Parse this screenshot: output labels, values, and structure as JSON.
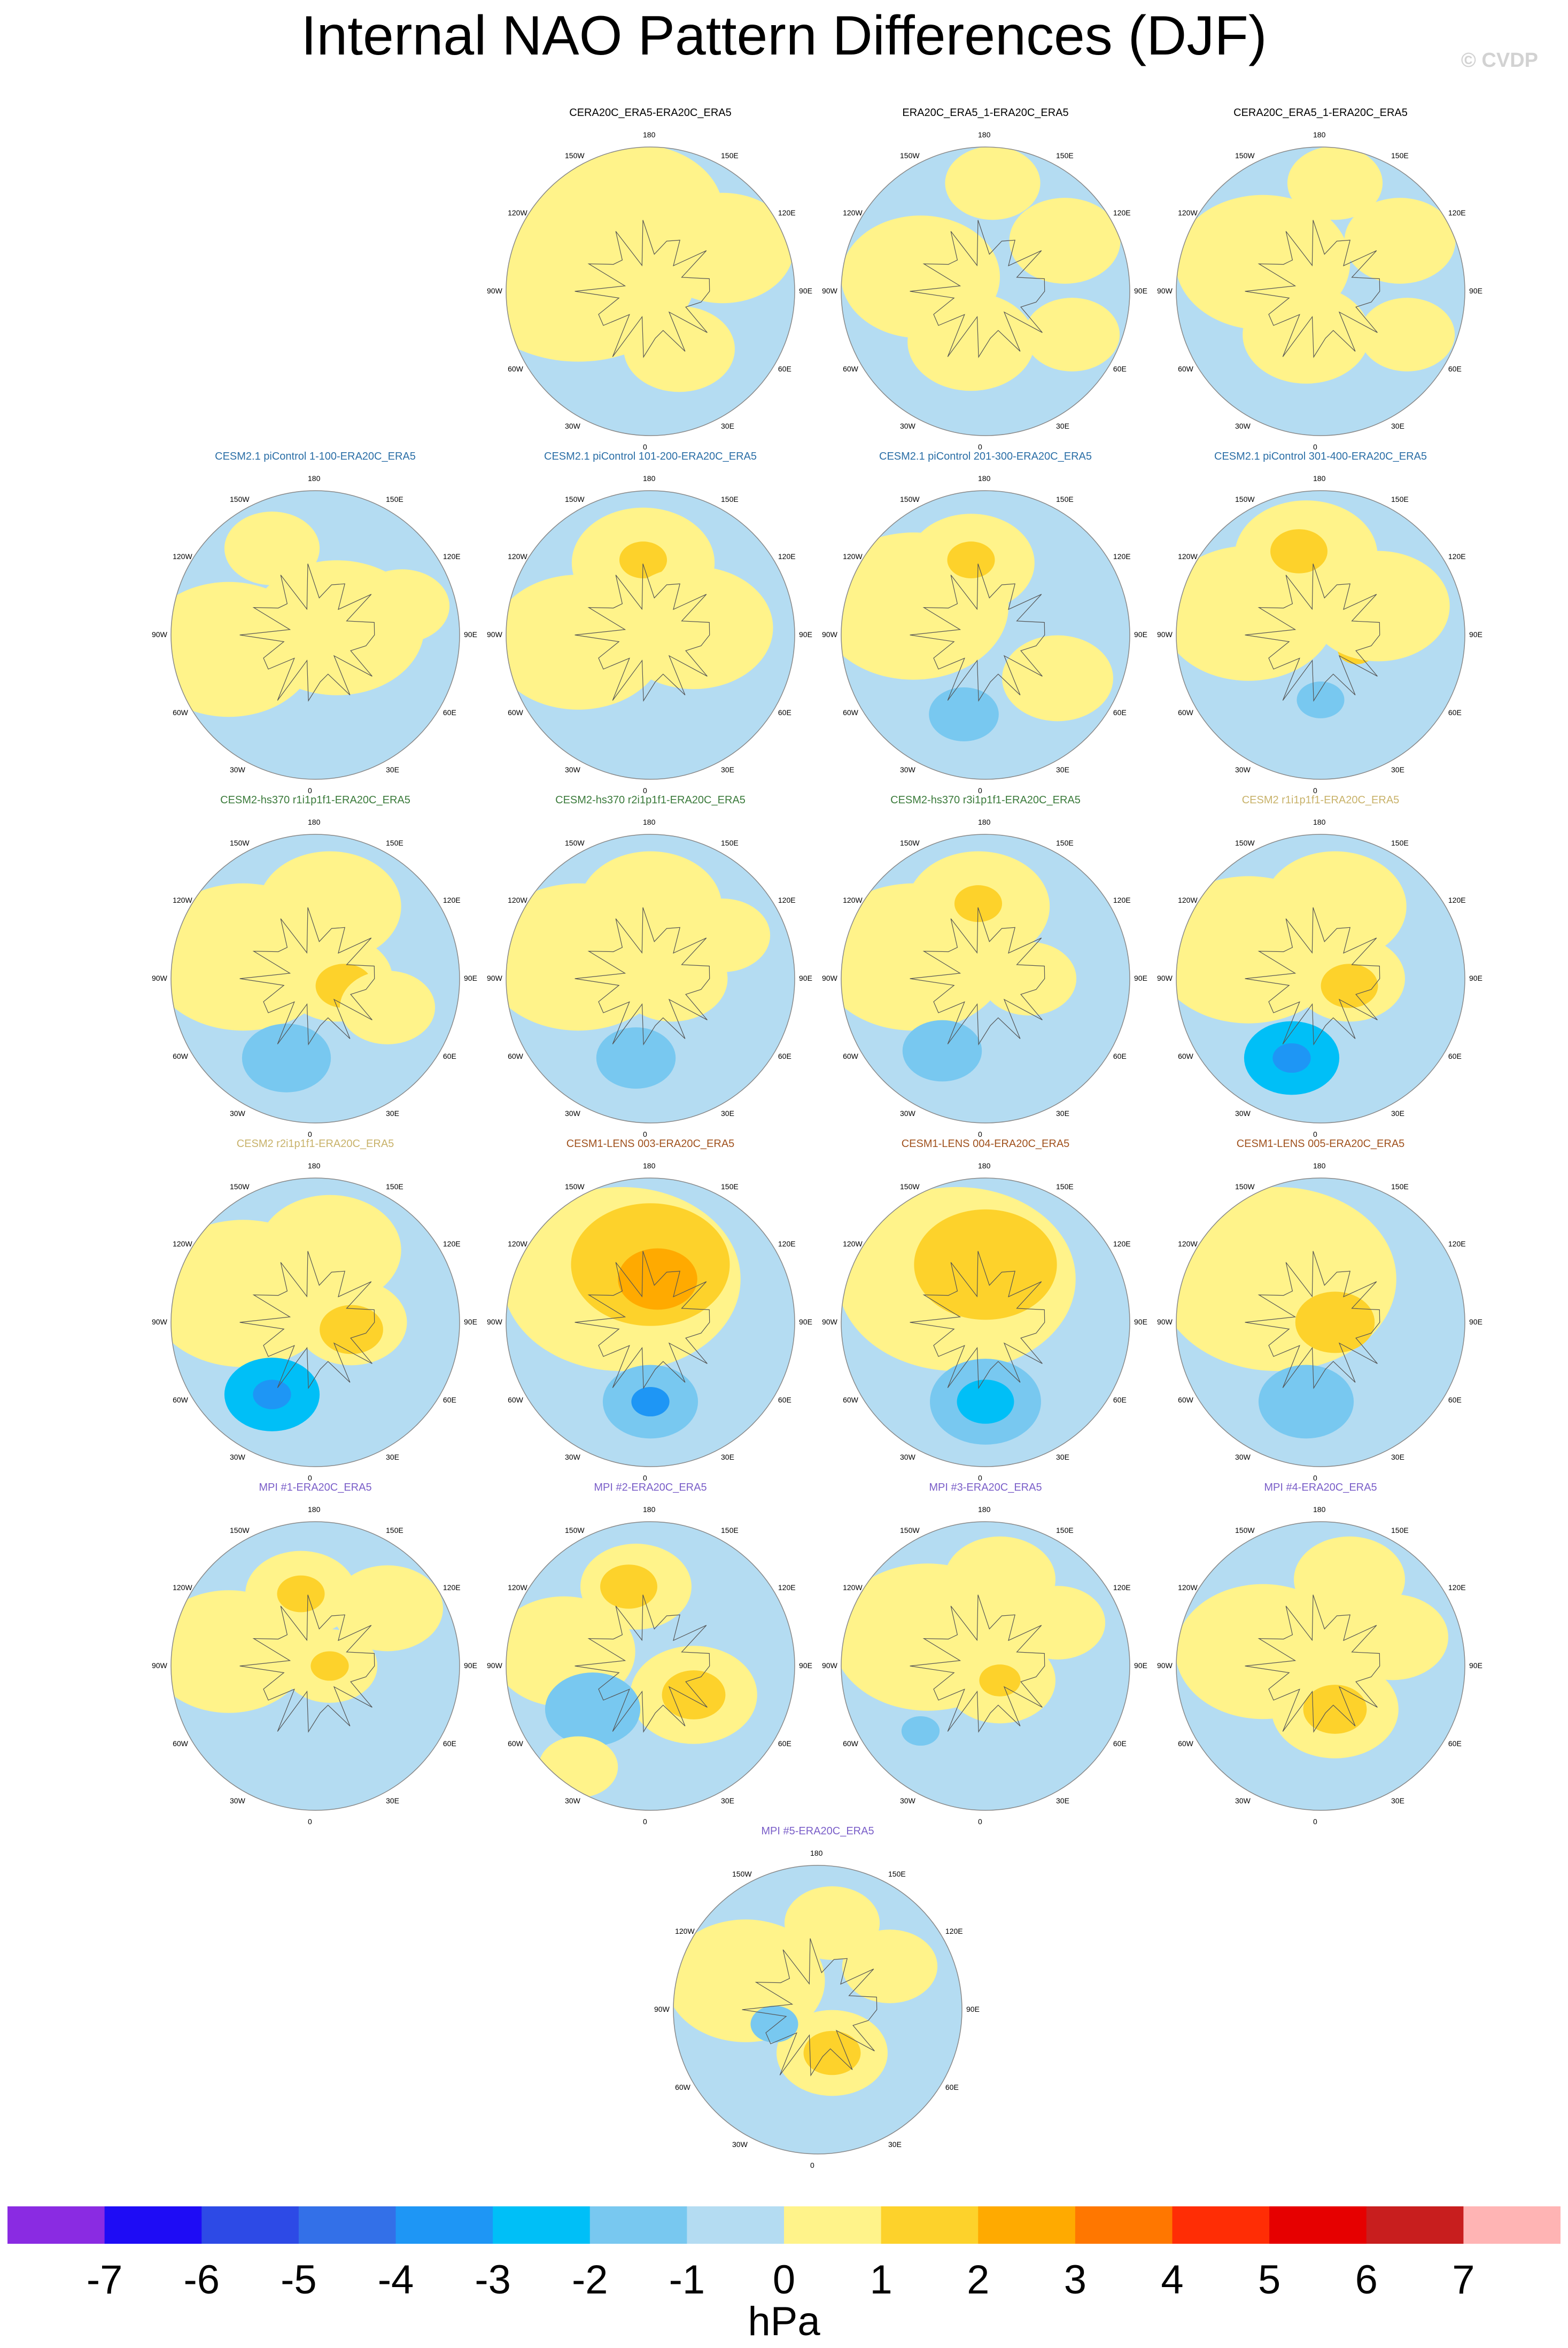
{
  "title": "Internal NAO Pattern Differences (DJF)",
  "credit": "© CVDP",
  "colors": {
    "ocean_zero": "#b4dcf2",
    "coast": "#555555",
    "rim": "#888888"
  },
  "lon_labels": [
    "180",
    "150E",
    "120E",
    "90E",
    "60E",
    "30E",
    "0",
    "30W",
    "60W",
    "90W",
    "120W",
    "150W"
  ],
  "chart_data": [
    {
      "type": "heatmap",
      "title": "CERA20C_ERA5-ERA20C_ERA5",
      "title_color": "#000000",
      "row": 0,
      "col": 1,
      "blobs": [
        [
          -0.5,
          0.15,
          0.75,
          0.2,
          1
        ],
        [
          -0.1,
          0.55,
          0.55,
          0.1,
          1
        ],
        [
          0.5,
          0.3,
          0.45,
          -0.1,
          1
        ],
        [
          0.2,
          -0.4,
          0.35,
          0.1,
          1
        ]
      ]
    },
    {
      "type": "heatmap",
      "title": "ERA20C_ERA5_1-ERA20C_ERA5",
      "title_color": "#000000",
      "row": 0,
      "col": 2,
      "blobs": [
        [
          -0.45,
          0.1,
          0.5,
          0.2,
          1
        ],
        [
          0.55,
          0.35,
          0.35,
          0.1,
          1
        ],
        [
          0.6,
          -0.3,
          0.3,
          0.1,
          1
        ],
        [
          -0.1,
          -0.35,
          0.4,
          0.1,
          1
        ],
        [
          0.05,
          0.75,
          0.3,
          0.2,
          1
        ]
      ]
    },
    {
      "type": "heatmap",
      "title": "CERA20C_ERA5_1-ERA20C_ERA5",
      "title_color": "#000000",
      "row": 0,
      "col": 3,
      "blobs": [
        [
          -0.4,
          0.2,
          0.55,
          0.2,
          1
        ],
        [
          0.55,
          0.35,
          0.35,
          0.1,
          1
        ],
        [
          0.6,
          -0.3,
          0.3,
          0.1,
          1
        ],
        [
          -0.1,
          -0.3,
          0.4,
          0.1,
          1
        ],
        [
          0.1,
          0.75,
          0.3,
          0.2,
          1
        ]
      ]
    },
    {
      "type": "heatmap",
      "title": "CESM2.1 piControl 1-100-ERA20C_ERA5",
      "title_color": "#2a6ea6",
      "row": 1,
      "col": 0,
      "blobs": [
        [
          -0.6,
          -0.1,
          0.55,
          0.1,
          1
        ],
        [
          0.15,
          0.05,
          0.55,
          0.2,
          1
        ],
        [
          -0.3,
          0.6,
          0.3,
          0.4,
          1
        ],
        [
          0.6,
          0.2,
          0.3,
          0.2,
          1
        ]
      ]
    },
    {
      "type": "heatmap",
      "title": "CESM2.1 piControl 101-200-ERA20C_ERA5",
      "title_color": "#2a6ea6",
      "row": 1,
      "col": 1,
      "blobs": [
        [
          -0.5,
          -0.05,
          0.55,
          0.1,
          1
        ],
        [
          -0.05,
          0.5,
          0.45,
          0.1,
          1
        ],
        [
          -0.05,
          0.52,
          0.15,
          0.5,
          2
        ],
        [
          0.3,
          0.05,
          0.5,
          0.2,
          1
        ]
      ]
    },
    {
      "type": "heatmap",
      "title": "CESM2.1 piControl 201-300-ERA20C_ERA5",
      "title_color": "#2a6ea6",
      "row": 1,
      "col": 2,
      "blobs": [
        [
          -0.5,
          0.2,
          0.6,
          0.1,
          1
        ],
        [
          -0.1,
          0.5,
          0.4,
          0.1,
          1
        ],
        [
          -0.1,
          0.52,
          0.15,
          0.4,
          2
        ],
        [
          -0.15,
          -0.55,
          0.22,
          -0.2,
          -1
        ],
        [
          0.5,
          -0.3,
          0.35,
          0.2,
          1
        ]
      ]
    },
    {
      "type": "heatmap",
      "title": "CESM2.1 piControl 301-400-ERA20C_ERA5",
      "title_color": "#2a6ea6",
      "row": 1,
      "col": 3,
      "blobs": [
        [
          -0.5,
          0.15,
          0.55,
          0.1,
          1
        ],
        [
          -0.1,
          0.55,
          0.45,
          0.1,
          1
        ],
        [
          -0.15,
          0.58,
          0.18,
          0.4,
          2
        ],
        [
          0.0,
          -0.45,
          0.15,
          -0.2,
          -1
        ],
        [
          0.25,
          -0.1,
          0.12,
          0.5,
          2
        ],
        [
          0.4,
          0.2,
          0.45,
          0.2,
          1
        ]
      ]
    },
    {
      "type": "heatmap",
      "title": "CESM2-hs370 r1i1p1f1-ERA20C_ERA5",
      "title_color": "#3a7a3a",
      "row": 2,
      "col": 0,
      "blobs": [
        [
          -0.5,
          0.15,
          0.6,
          0.1,
          1
        ],
        [
          0.1,
          0.5,
          0.45,
          0.1,
          1
        ],
        [
          0.15,
          0.0,
          0.35,
          0.1,
          1
        ],
        [
          0.2,
          -0.05,
          0.18,
          0.5,
          2
        ],
        [
          -0.2,
          -0.55,
          0.28,
          -0.2,
          -1
        ],
        [
          0.5,
          -0.2,
          0.3,
          0.2,
          1
        ]
      ]
    },
    {
      "type": "heatmap",
      "title": "CESM2-hs370 r2i1p1f1-ERA20C_ERA5",
      "title_color": "#3a7a3a",
      "row": 2,
      "col": 1,
      "blobs": [
        [
          -0.5,
          0.15,
          0.6,
          0.1,
          1
        ],
        [
          0.0,
          0.5,
          0.45,
          0.1,
          1
        ],
        [
          0.15,
          0.0,
          0.35,
          0.1,
          1
        ],
        [
          -0.1,
          -0.55,
          0.25,
          -0.2,
          -1
        ],
        [
          0.5,
          0.3,
          0.3,
          0.2,
          1
        ]
      ]
    },
    {
      "type": "heatmap",
      "title": "CESM2-hs370 r3i1p1f1-ERA20C_ERA5",
      "title_color": "#3a7a3a",
      "row": 2,
      "col": 2,
      "blobs": [
        [
          -0.5,
          0.15,
          0.6,
          0.1,
          1
        ],
        [
          -0.05,
          0.5,
          0.45,
          0.1,
          1
        ],
        [
          -0.05,
          0.52,
          0.15,
          0.5,
          2
        ],
        [
          -0.3,
          -0.5,
          0.25,
          -0.2,
          -1
        ],
        [
          0.3,
          0.0,
          0.3,
          0.2,
          1
        ]
      ]
    },
    {
      "type": "heatmap",
      "title": "CESM2 r1i1p1f1-ERA20C_ERA5",
      "title_color": "#c8b26a",
      "row": 2,
      "col": 3,
      "blobs": [
        [
          -0.5,
          0.2,
          0.6,
          0.1,
          1
        ],
        [
          0.1,
          0.5,
          0.45,
          0.1,
          1
        ],
        [
          0.2,
          0.0,
          0.35,
          0.1,
          1
        ],
        [
          0.2,
          -0.05,
          0.18,
          0.5,
          2
        ],
        [
          -0.2,
          -0.55,
          0.3,
          -0.2,
          -2
        ],
        [
          -0.2,
          -0.55,
          0.12,
          -0.5,
          -3
        ]
      ]
    },
    {
      "type": "heatmap",
      "title": "CESM2 r2i1p1f1-ERA20C_ERA5",
      "title_color": "#c8b26a",
      "row": 3,
      "col": 0,
      "blobs": [
        [
          -0.5,
          0.2,
          0.6,
          0.1,
          1
        ],
        [
          0.1,
          0.5,
          0.45,
          0.1,
          1
        ],
        [
          0.25,
          0.0,
          0.35,
          0.1,
          1
        ],
        [
          0.25,
          -0.05,
          0.2,
          0.5,
          2
        ],
        [
          -0.3,
          -0.5,
          0.3,
          -0.2,
          -2
        ],
        [
          -0.3,
          -0.5,
          0.12,
          -0.5,
          -3
        ]
      ]
    },
    {
      "type": "heatmap",
      "title": "CESM1-LENS 003-ERA20C_ERA5",
      "title_color": "#a0521e",
      "row": 3,
      "col": 1,
      "blobs": [
        [
          -0.2,
          0.3,
          0.75,
          0.2,
          1
        ],
        [
          0.0,
          0.4,
          0.5,
          0.3,
          2
        ],
        [
          0.05,
          0.3,
          0.25,
          0.3,
          3
        ],
        [
          0.0,
          -0.55,
          0.3,
          -0.2,
          -1
        ],
        [
          0.0,
          -0.55,
          0.12,
          -0.5,
          -3
        ]
      ]
    },
    {
      "type": "heatmap",
      "title": "CESM1-LENS 004-ERA20C_ERA5",
      "title_color": "#a0521e",
      "row": 3,
      "col": 2,
      "blobs": [
        [
          -0.2,
          0.3,
          0.75,
          0.2,
          1
        ],
        [
          0.0,
          0.4,
          0.45,
          0.3,
          2
        ],
        [
          0.0,
          -0.55,
          0.35,
          -0.2,
          -1
        ],
        [
          0.0,
          -0.55,
          0.18,
          -0.3,
          -2
        ]
      ]
    },
    {
      "type": "heatmap",
      "title": "CESM1-LENS 005-ERA20C_ERA5",
      "title_color": "#a0521e",
      "row": 3,
      "col": 3,
      "blobs": [
        [
          -0.3,
          0.3,
          0.75,
          0.2,
          1
        ],
        [
          0.1,
          0.0,
          0.25,
          0.3,
          2
        ],
        [
          -0.1,
          -0.55,
          0.3,
          -0.2,
          -1
        ]
      ]
    },
    {
      "type": "heatmap",
      "title": "MPI #1-ERA20C_ERA5",
      "title_color": "#7a5ec8",
      "row": 4,
      "col": 0,
      "blobs": [
        [
          -0.6,
          0.1,
          0.5,
          0.1,
          1
        ],
        [
          -0.1,
          0.5,
          0.35,
          0.1,
          1
        ],
        [
          -0.1,
          0.5,
          0.15,
          0.3,
          2
        ],
        [
          0.1,
          0.0,
          0.3,
          0.1,
          1
        ],
        [
          0.1,
          0.0,
          0.12,
          0.4,
          2
        ],
        [
          0.5,
          0.4,
          0.35,
          0.1,
          1
        ]
      ]
    },
    {
      "type": "heatmap",
      "title": "MPI #2-ERA20C_ERA5",
      "title_color": "#7a5ec8",
      "row": 4,
      "col": 1,
      "blobs": [
        [
          -0.6,
          0.1,
          0.45,
          0.1,
          1
        ],
        [
          -0.1,
          0.55,
          0.35,
          0.1,
          1
        ],
        [
          -0.15,
          0.55,
          0.18,
          0.4,
          2
        ],
        [
          0.3,
          -0.2,
          0.4,
          0.1,
          1
        ],
        [
          0.3,
          -0.2,
          0.2,
          0.5,
          2
        ],
        [
          -0.4,
          -0.3,
          0.3,
          -0.2,
          -1
        ],
        [
          -0.5,
          -0.7,
          0.25,
          0.1,
          1
        ]
      ]
    },
    {
      "type": "heatmap",
      "title": "MPI #3-ERA20C_ERA5",
      "title_color": "#7a5ec8",
      "row": 4,
      "col": 2,
      "blobs": [
        [
          -0.4,
          0.2,
          0.6,
          0.1,
          1
        ],
        [
          0.1,
          0.6,
          0.35,
          0.1,
          1
        ],
        [
          0.1,
          -0.1,
          0.35,
          0.1,
          1
        ],
        [
          0.1,
          -0.1,
          0.13,
          0.4,
          2
        ],
        [
          -0.45,
          -0.45,
          0.12,
          -0.2,
          -1
        ],
        [
          0.5,
          0.3,
          0.3,
          0.1,
          1
        ]
      ]
    },
    {
      "type": "heatmap",
      "title": "MPI #4-ERA20C_ERA5",
      "title_color": "#7a5ec8",
      "row": 4,
      "col": 3,
      "blobs": [
        [
          -0.4,
          0.1,
          0.55,
          0.1,
          1
        ],
        [
          0.2,
          0.6,
          0.35,
          0.1,
          1
        ],
        [
          0.1,
          -0.3,
          0.4,
          0.1,
          1
        ],
        [
          0.1,
          -0.3,
          0.2,
          0.5,
          2
        ],
        [
          0.5,
          0.2,
          0.35,
          0.1,
          1
        ]
      ]
    },
    {
      "type": "heatmap",
      "title": "MPI #5-ERA20C_ERA5",
      "title_color": "#7a5ec8",
      "row": 5,
      "col": 1.5,
      "blobs": [
        [
          -0.5,
          0.2,
          0.5,
          0.1,
          1
        ],
        [
          0.1,
          0.6,
          0.3,
          0.1,
          1
        ],
        [
          0.1,
          -0.3,
          0.35,
          0.1,
          1
        ],
        [
          0.1,
          -0.3,
          0.18,
          0.5,
          2
        ],
        [
          -0.3,
          -0.1,
          0.15,
          -0.2,
          -1
        ],
        [
          0.5,
          0.3,
          0.3,
          0.1,
          1
        ]
      ]
    }
  ],
  "colorbar": {
    "levels": [
      "-7",
      "-6",
      "-5",
      "-4",
      "-3",
      "-2",
      "-1",
      "0",
      "1",
      "2",
      "3",
      "4",
      "5",
      "6",
      "7"
    ],
    "colors": [
      "#8a2be2",
      "#1e0cf5",
      "#2d4ae6",
      "#3370e8",
      "#1e96f5",
      "#00bff7",
      "#78c8f0",
      "#b4dcf2",
      "#fff38a",
      "#fdd22b",
      "#ffaa00",
      "#ff7700",
      "#ff2d05",
      "#e60000",
      "#c81e1e",
      "#ffb4b4"
    ],
    "units": "hPa"
  }
}
